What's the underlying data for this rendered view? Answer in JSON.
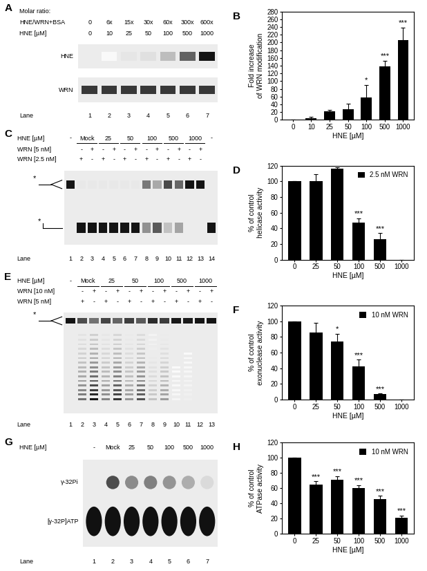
{
  "chart_data": [
    {
      "panel": "B",
      "type": "bar",
      "categories": [
        "0",
        "10",
        "25",
        "50",
        "100",
        "500",
        "1000"
      ],
      "values": [
        1,
        5,
        22,
        27,
        58,
        138,
        206
      ],
      "errors": [
        0,
        3,
        4,
        14,
        32,
        15,
        32
      ],
      "annotations": [
        null,
        null,
        null,
        null,
        "*",
        "***",
        "***"
      ],
      "color": "#000000",
      "xlabel": "HNE [µM]",
      "ylabel": "Fold increase\nof WRN modification",
      "ylim": [
        0,
        280
      ],
      "yticks": [
        0,
        20,
        40,
        60,
        80,
        100,
        120,
        140,
        160,
        180,
        200,
        220,
        240,
        260,
        280
      ]
    },
    {
      "panel": "D",
      "type": "bar",
      "categories": [
        "0",
        "25",
        "50",
        "100",
        "500",
        "1000"
      ],
      "series": [
        {
          "name": "2.5 nM WRN",
          "color": "#000000",
          "values": [
            100,
            100,
            116,
            47,
            26,
            0
          ],
          "errors": [
            0,
            9,
            2,
            6,
            8,
            0
          ]
        }
      ],
      "annotations": [
        null,
        null,
        null,
        "***",
        "***",
        null
      ],
      "legend": "upper right",
      "xlabel": "HNE [µM]",
      "ylabel": "% of control\nhelicase activity",
      "ylim": [
        0,
        120
      ],
      "yticks": [
        0,
        20,
        40,
        60,
        80,
        100,
        120
      ]
    },
    {
      "panel": "F",
      "type": "bar",
      "categories": [
        "0",
        "25",
        "50",
        "100",
        "500",
        "1000"
      ],
      "series": [
        {
          "name": "10 nM WRN",
          "color": "#000000",
          "values": [
            100,
            86,
            74,
            42,
            7,
            0
          ],
          "errors": [
            0,
            12,
            10,
            9,
            1,
            0
          ]
        }
      ],
      "annotations": [
        null,
        null,
        "*",
        "***",
        "***",
        null
      ],
      "legend": "upper right",
      "xlabel": "HNE [µM]",
      "ylabel": "% of control\nexonuclease activity",
      "ylim": [
        0,
        120
      ],
      "yticks": [
        0,
        20,
        40,
        60,
        80,
        100,
        120
      ]
    },
    {
      "panel": "H",
      "type": "bar",
      "categories": [
        "0",
        "25",
        "50",
        "100",
        "500",
        "1000"
      ],
      "series": [
        {
          "name": "10 nM WRN",
          "color": "#000000",
          "values": [
            100,
            65,
            71,
            60,
            46,
            21
          ],
          "errors": [
            0,
            4,
            5,
            4,
            4,
            3
          ]
        }
      ],
      "annotations": [
        null,
        "***",
        "***",
        "***",
        "***",
        "***"
      ],
      "legend": "upper right",
      "xlabel": "HNE [µM]",
      "ylabel": "% of control\nATPase activity",
      "ylim": [
        0,
        120
      ],
      "yticks": [
        0,
        20,
        40,
        60,
        80,
        100,
        120
      ]
    }
  ],
  "gels": [
    {
      "panel": "A",
      "title": "Molar ratio:",
      "rows": [
        {
          "label": "HNE/WRN+BSA",
          "per_lane": [
            "0",
            "6x",
            "15x",
            "30x",
            "60x",
            "300x",
            "600x"
          ]
        },
        {
          "label": "HNE [µM]",
          "groups": [
            {
              "text": "0",
              "lanes": [
                1
              ]
            },
            {
              "text": "10",
              "lanes": [
                2
              ]
            },
            {
              "text": "25",
              "lanes": [
                3
              ]
            },
            {
              "text": "50",
              "lanes": [
                4
              ]
            },
            {
              "text": "100",
              "lanes": [
                5
              ]
            },
            {
              "text": "500",
              "lanes": [
                6
              ]
            },
            {
              "text": "1000",
              "lanes": [
                7
              ]
            }
          ]
        }
      ],
      "blots": [
        "HNE",
        "WRN"
      ],
      "lane_label": "Lane",
      "lanes": [
        1,
        2,
        3,
        4,
        5,
        6,
        7
      ]
    },
    {
      "panel": "C",
      "rows": [
        {
          "label": "HNE [µM]",
          "groups": [
            {
              "text": "-",
              "lanes": [
                1
              ]
            },
            {
              "text": "Mock",
              "lanes": [
                2,
                3
              ]
            },
            {
              "text": "25",
              "lanes": [
                4,
                5
              ]
            },
            {
              "text": "50",
              "lanes": [
                6,
                7
              ]
            },
            {
              "text": "100",
              "lanes": [
                8,
                9
              ]
            },
            {
              "text": "500",
              "lanes": [
                10,
                11
              ]
            },
            {
              "text": "1000",
              "lanes": [
                12,
                13
              ]
            },
            {
              "text": "-",
              "lanes": [
                14
              ]
            }
          ]
        },
        {
          "label": "WRN [5 nM]",
          "per_lane": [
            null,
            "-",
            "+",
            "-",
            "+",
            "-",
            "+",
            "-",
            "+",
            "-",
            "+",
            "-",
            "+",
            null
          ]
        },
        {
          "label": "WRN [2.5 nM]",
          "per_lane": [
            null,
            "+",
            "-",
            "+",
            "-",
            "+",
            "-",
            "+",
            "-",
            "+",
            "-",
            "+",
            "-",
            null
          ]
        }
      ],
      "species": [
        "*",
        "*"
      ],
      "lane_label": "Lane",
      "lanes": [
        1,
        2,
        3,
        4,
        5,
        6,
        7,
        8,
        9,
        10,
        11,
        12,
        13,
        14
      ]
    },
    {
      "panel": "E",
      "rows": [
        {
          "label": "HNE [µM]",
          "groups": [
            {
              "text": "-",
              "lanes": [
                1
              ]
            },
            {
              "text": "Mock",
              "lanes": [
                2,
                3
              ]
            },
            {
              "text": "25",
              "lanes": [
                4,
                5
              ]
            },
            {
              "text": "50",
              "lanes": [
                6,
                7
              ]
            },
            {
              "text": "100",
              "lanes": [
                8,
                9
              ]
            },
            {
              "text": "500",
              "lanes": [
                10,
                11
              ]
            },
            {
              "text": "1000",
              "lanes": [
                12,
                13
              ]
            }
          ]
        },
        {
          "label": "WRN [10 nM]",
          "per_lane": [
            null,
            "-",
            "+",
            "-",
            "+",
            "-",
            "+",
            "-",
            "+",
            "-",
            "+",
            "-",
            "+"
          ]
        },
        {
          "label": "WRN [5 nM]",
          "per_lane": [
            null,
            "+",
            "-",
            "+",
            "-",
            "+",
            "-",
            "+",
            "-",
            "+",
            "-",
            "+",
            "-"
          ]
        }
      ],
      "species": [
        "*"
      ],
      "lane_label": "Lane",
      "lanes": [
        1,
        2,
        3,
        4,
        5,
        6,
        7,
        8,
        9,
        10,
        11,
        12,
        13
      ]
    },
    {
      "panel": "G",
      "rows": [
        {
          "label": "HNE [µM]",
          "groups": [
            {
              "text": "-",
              "lanes": [
                1
              ]
            },
            {
              "text": "Mock",
              "lanes": [
                2
              ]
            },
            {
              "text": "25",
              "lanes": [
                3
              ]
            },
            {
              "text": "50",
              "lanes": [
                4
              ]
            },
            {
              "text": "100",
              "lanes": [
                5
              ]
            },
            {
              "text": "500",
              "lanes": [
                6
              ]
            },
            {
              "text": "1000",
              "lanes": [
                7
              ]
            }
          ]
        }
      ],
      "species": [
        "γ-32Pi",
        "[γ-32P]ATP"
      ],
      "lane_label": "Lane",
      "lanes": [
        1,
        2,
        3,
        4,
        5,
        6,
        7
      ]
    }
  ]
}
